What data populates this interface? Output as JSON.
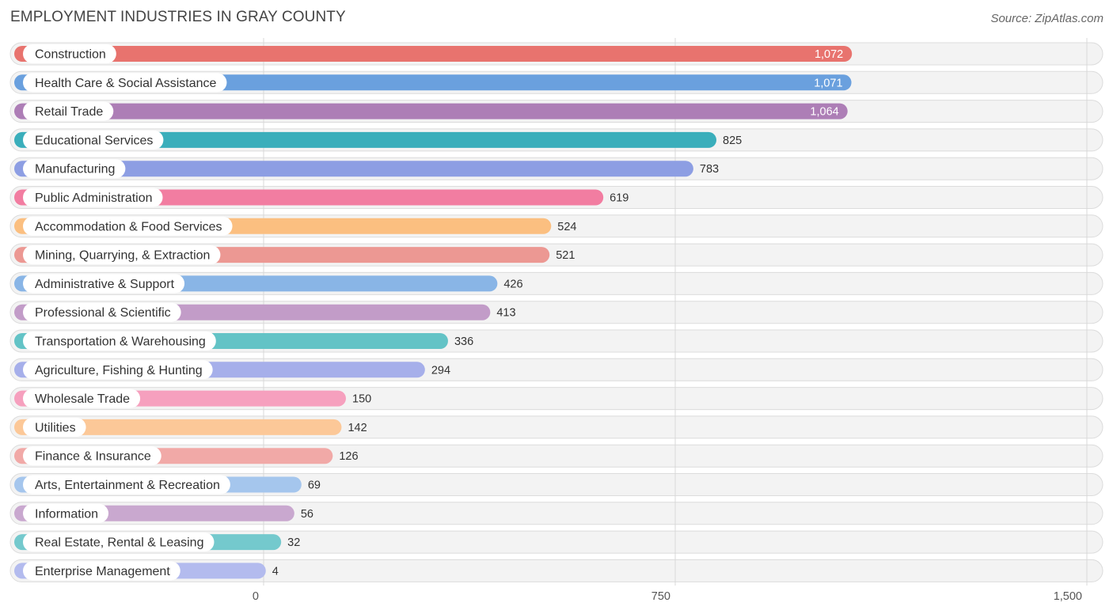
{
  "chart_data": {
    "type": "bar",
    "orientation": "horizontal",
    "title": "EMPLOYMENT INDUSTRIES IN GRAY COUNTY",
    "source": "Source: ZipAtlas.com",
    "xlim": [
      0,
      1500
    ],
    "ticks": [
      0,
      750,
      1500
    ],
    "tick_labels": [
      "0",
      "750",
      "1,500"
    ],
    "categories": [
      "Construction",
      "Health Care & Social Assistance",
      "Retail Trade",
      "Educational Services",
      "Manufacturing",
      "Public Administration",
      "Accommodation & Food Services",
      "Mining, Quarrying, & Extraction",
      "Administrative & Support",
      "Professional & Scientific",
      "Transportation & Warehousing",
      "Agriculture, Fishing & Hunting",
      "Wholesale Trade",
      "Utilities",
      "Finance & Insurance",
      "Arts, Entertainment & Recreation",
      "Information",
      "Real Estate, Rental & Leasing",
      "Enterprise Management"
    ],
    "values": [
      1072,
      1071,
      1064,
      825,
      783,
      619,
      524,
      521,
      426,
      413,
      336,
      294,
      150,
      142,
      126,
      69,
      56,
      32,
      4
    ],
    "value_labels": [
      "1,072",
      "1,071",
      "1,064",
      "825",
      "783",
      "619",
      "524",
      "521",
      "426",
      "413",
      "336",
      "294",
      "150",
      "142",
      "126",
      "69",
      "56",
      "32",
      "4"
    ],
    "colors": [
      "#e8736e",
      "#6aa0de",
      "#ad7eb6",
      "#3aaebb",
      "#8d9ee3",
      "#f27da1",
      "#fbbf80",
      "#ec9893",
      "#89b5e6",
      "#c29cc8",
      "#63c3c6",
      "#a6afea",
      "#f6a0be",
      "#fcc898",
      "#f1a9a7",
      "#a5c6ed",
      "#c9a8cf",
      "#74c9cd",
      "#b3bbee"
    ]
  }
}
